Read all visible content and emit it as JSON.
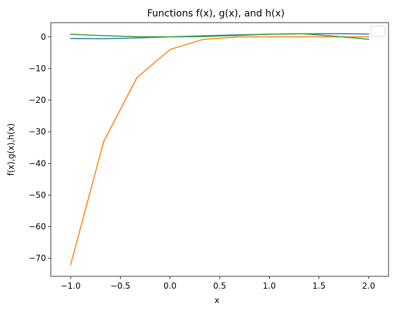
{
  "chart_data": {
    "type": "line",
    "title": "Functions f(x), g(x), and h(x)",
    "xlabel": "x",
    "ylabel": "f(x),g(x),h(x)",
    "xlim": [
      -1.2,
      2.2
    ],
    "ylim": [
      -75.7,
      4.5
    ],
    "xticks": [
      -1.0,
      -0.5,
      0.0,
      0.5,
      1.0,
      1.5,
      2.0
    ],
    "xtick_labels": [
      "−1.0",
      "−0.5",
      "0.0",
      "0.5",
      "1.0",
      "1.5",
      "2.0"
    ],
    "yticks": [
      0,
      -10,
      -20,
      -30,
      -40,
      -50,
      -60,
      -70
    ],
    "ytick_labels": [
      "0",
      "−10",
      "−20",
      "−30",
      "−40",
      "−50",
      "−60",
      "−70"
    ],
    "grid": false,
    "legend": "top-right",
    "x": [
      -1.0,
      -0.6667,
      -0.3333,
      0.0,
      0.3333,
      0.6667,
      1.0,
      1.3333,
      1.6667,
      2.0
    ],
    "series": [
      {
        "color": "#1f77b4",
        "values": [
          -0.54,
          -0.6,
          -0.33,
          0.0,
          0.33,
          0.62,
          0.84,
          0.97,
          1.0,
          0.91
        ]
      },
      {
        "color": "#ff7f0e",
        "values": [
          -72.0,
          -33.0,
          -12.9,
          -4.0,
          -0.8,
          -0.05,
          0.0,
          0.03,
          0.0,
          0.0
        ]
      },
      {
        "color": "#2ca02c",
        "values": [
          0.84,
          0.37,
          0.06,
          0.0,
          0.1,
          0.43,
          0.84,
          0.97,
          0.2,
          -0.76
        ]
      }
    ]
  }
}
